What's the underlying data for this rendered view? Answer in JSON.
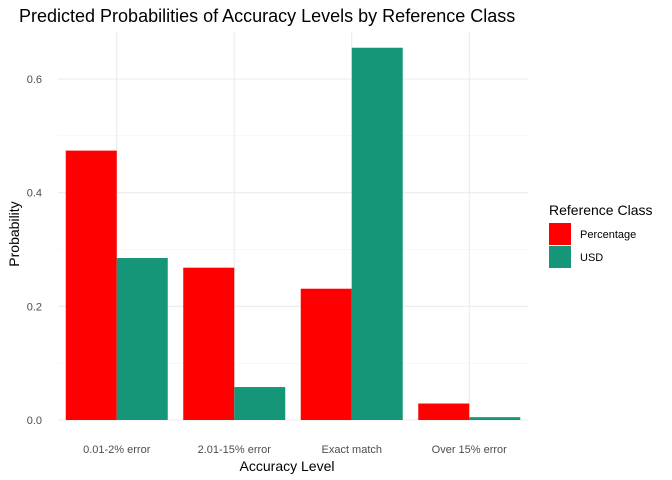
{
  "chart_data": {
    "type": "bar",
    "title": "Predicted Probabilities of Accuracy Levels by Reference Class",
    "xlabel": "Accuracy Level",
    "ylabel": "Probability",
    "categories": [
      "0.01-2% error",
      "2.01-15% error",
      "Exact match",
      "Over 15% error"
    ],
    "series": [
      {
        "name": "Percentage",
        "color": "#ff0000",
        "values": [
          0.474,
          0.268,
          0.231,
          0.029
        ]
      },
      {
        "name": "USD",
        "color": "#169679",
        "values": [
          0.285,
          0.058,
          0.655,
          0.005
        ]
      }
    ],
    "ylim": [
      0,
      0.7
    ],
    "yticks": [
      0.0,
      0.2,
      0.4,
      0.6
    ],
    "ytick_labels": [
      "0.0",
      "0.2",
      "0.4",
      "0.6"
    ],
    "grid": true,
    "legend": {
      "title": "Reference Class",
      "placement": "right"
    }
  }
}
